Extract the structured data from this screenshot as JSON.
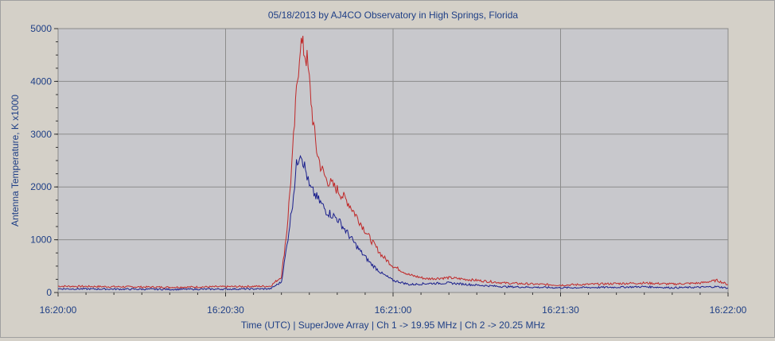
{
  "chart_data": {
    "type": "line",
    "title": "05/18/2013  by  AJ4CO Observatory  in  High Springs, Florida",
    "xlabel": "Time (UTC)  |  SuperJove Array  |  Ch 1 -> 19.95 MHz  |  Ch 2 -> 20.25 MHz",
    "ylabel": "Antenna Temperature, K x1000",
    "xlim": [
      "16:20:00",
      "16:22:00"
    ],
    "ylim": [
      0,
      5000
    ],
    "x_ticks": [
      "16:20:00",
      "16:20:30",
      "16:21:00",
      "16:21:30",
      "16:22:00"
    ],
    "y_ticks": [
      "0",
      "1000",
      "2000",
      "3000",
      "4000",
      "5000"
    ],
    "grid": true,
    "background": "#c8c8cc",
    "series": [
      {
        "color": "#c02828",
        "x": [
          "16:20:00",
          "16:20:10",
          "16:20:20",
          "16:20:30",
          "16:20:38",
          "16:20:40",
          "16:20:41",
          "16:20:42",
          "16:20:42.7",
          "16:20:43.4",
          "16:20:44",
          "16:20:44.6",
          "16:20:45",
          "16:20:45.6",
          "16:20:46.3",
          "16:20:47",
          "16:20:48",
          "16:20:49",
          "16:20:50",
          "16:20:52",
          "16:20:54",
          "16:20:56",
          "16:20:58",
          "16:21:00",
          "16:21:03",
          "16:21:06",
          "16:21:10",
          "16:21:15",
          "16:21:20",
          "16:21:30",
          "16:21:40",
          "16:21:45",
          "16:21:50",
          "16:21:55",
          "16:21:58",
          "16:22:00"
        ],
        "values": [
          120,
          110,
          100,
          110,
          120,
          300,
          1200,
          2600,
          3800,
          4750,
          4600,
          4400,
          4000,
          3300,
          2700,
          2400,
          2150,
          2050,
          1950,
          1700,
          1350,
          1000,
          700,
          500,
          330,
          260,
          280,
          230,
          180,
          140,
          170,
          180,
          160,
          180,
          230,
          150
        ]
      },
      {
        "color": "#1a1f8c",
        "x": [
          "16:20:00",
          "16:20:10",
          "16:20:20",
          "16:20:30",
          "16:20:38",
          "16:20:40",
          "16:20:41",
          "16:20:42",
          "16:20:42.7",
          "16:20:43.4",
          "16:20:44",
          "16:20:44.6",
          "16:20:45",
          "16:20:46",
          "16:20:47",
          "16:20:48",
          "16:20:50",
          "16:20:52",
          "16:20:54",
          "16:20:56",
          "16:20:58",
          "16:21:00",
          "16:21:03",
          "16:21:06",
          "16:21:10",
          "16:21:15",
          "16:21:20",
          "16:21:30",
          "16:21:40",
          "16:21:45",
          "16:21:50",
          "16:21:55",
          "16:21:58",
          "16:22:00"
        ],
        "values": [
          70,
          65,
          60,
          65,
          70,
          200,
          900,
          1700,
          2400,
          2700,
          2450,
          2200,
          2000,
          1850,
          1700,
          1550,
          1400,
          1100,
          800,
          550,
          360,
          230,
          150,
          170,
          180,
          140,
          110,
          90,
          100,
          110,
          90,
          100,
          110,
          85
        ]
      }
    ]
  }
}
